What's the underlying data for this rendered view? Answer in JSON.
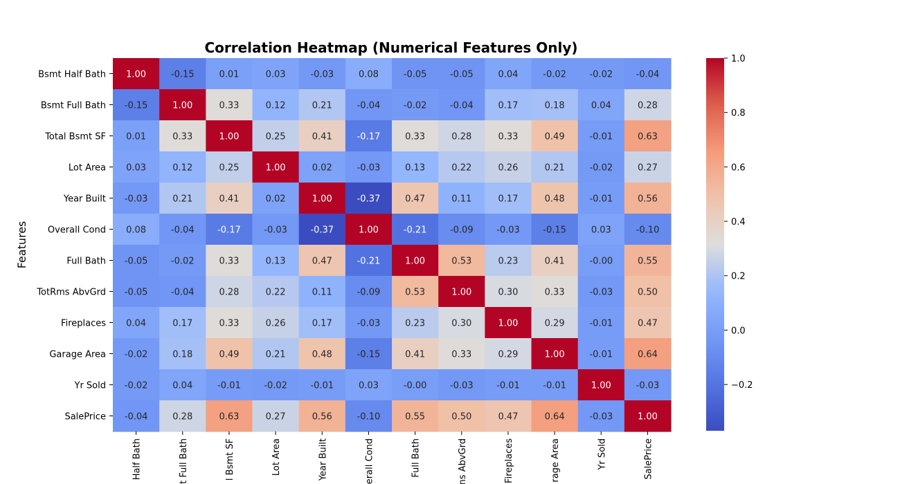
{
  "chart_data": {
    "type": "heatmap",
    "title": "Correlation Heatmap (Numerical Features Only)",
    "ylabel": "Features",
    "xlabel": "",
    "colormap": "coolwarm",
    "value_range": [
      -0.37,
      1.0
    ],
    "colorbar_ticks": [
      "1.0",
      "0.8",
      "0.6",
      "0.4",
      "0.2",
      "0.0",
      "−0.2"
    ],
    "colorbar_tick_values": [
      1.0,
      0.8,
      0.6,
      0.4,
      0.2,
      0.0,
      -0.2
    ],
    "x_tick_labels": [
      "Half Bath",
      "t Full Bath",
      "l Bsmt SF",
      "Lot Area",
      "Year Built",
      "erall Cond",
      "Full Bath",
      "ns AbvGrd",
      "Fireplaces",
      "rage Area",
      "Yr Sold",
      "SalePrice"
    ],
    "rows": [
      "Bsmt Half Bath",
      "Bsmt Full Bath",
      "Total Bsmt SF",
      "Lot Area",
      "Year Built",
      "Overall Cond",
      "Full Bath",
      "TotRms AbvGrd",
      "Fireplaces",
      "Garage Area",
      "Yr Sold",
      "SalePrice"
    ],
    "columns": [
      "Bsmt Half Bath",
      "Bsmt Full Bath",
      "Total Bsmt SF",
      "Lot Area",
      "Year Built",
      "Overall Cond",
      "Full Bath",
      "TotRms AbvGrd",
      "Fireplaces",
      "Garage Area",
      "Yr Sold",
      "SalePrice"
    ],
    "values": [
      [
        1.0,
        -0.15,
        0.01,
        0.03,
        -0.03,
        0.08,
        -0.05,
        -0.05,
        0.04,
        -0.02,
        -0.02,
        -0.04
      ],
      [
        -0.15,
        1.0,
        0.33,
        0.12,
        0.21,
        -0.04,
        -0.02,
        -0.04,
        0.17,
        0.18,
        0.04,
        0.28
      ],
      [
        0.01,
        0.33,
        1.0,
        0.25,
        0.41,
        -0.17,
        0.33,
        0.28,
        0.33,
        0.49,
        -0.01,
        0.63
      ],
      [
        0.03,
        0.12,
        0.25,
        1.0,
        0.02,
        -0.03,
        0.13,
        0.22,
        0.26,
        0.21,
        -0.02,
        0.27
      ],
      [
        -0.03,
        0.21,
        0.41,
        0.02,
        1.0,
        -0.37,
        0.47,
        0.11,
        0.17,
        0.48,
        -0.01,
        0.56
      ],
      [
        0.08,
        -0.04,
        -0.17,
        -0.03,
        -0.37,
        1.0,
        -0.21,
        -0.09,
        -0.03,
        -0.15,
        0.03,
        -0.1
      ],
      [
        -0.05,
        -0.02,
        0.33,
        0.13,
        0.47,
        -0.21,
        1.0,
        0.53,
        0.23,
        0.41,
        -0.0,
        0.55
      ],
      [
        -0.05,
        -0.04,
        0.28,
        0.22,
        0.11,
        -0.09,
        0.53,
        1.0,
        0.3,
        0.33,
        -0.03,
        0.5
      ],
      [
        0.04,
        0.17,
        0.33,
        0.26,
        0.17,
        -0.03,
        0.23,
        0.3,
        1.0,
        0.29,
        -0.01,
        0.47
      ],
      [
        -0.02,
        0.18,
        0.49,
        0.21,
        0.48,
        -0.15,
        0.41,
        0.33,
        0.29,
        1.0,
        -0.01,
        0.64
      ],
      [
        -0.02,
        0.04,
        -0.01,
        -0.02,
        -0.01,
        0.03,
        -0.0,
        -0.03,
        -0.01,
        -0.01,
        1.0,
        -0.03
      ],
      [
        -0.04,
        0.28,
        0.63,
        0.27,
        0.56,
        -0.1,
        0.55,
        0.5,
        0.47,
        0.64,
        -0.03,
        1.0
      ]
    ],
    "value_labels": [
      [
        "1.00",
        "-0.15",
        "0.01",
        "0.03",
        "-0.03",
        "0.08",
        "-0.05",
        "-0.05",
        "0.04",
        "-0.02",
        "-0.02",
        "-0.04"
      ],
      [
        "-0.15",
        "1.00",
        "0.33",
        "0.12",
        "0.21",
        "-0.04",
        "-0.02",
        "-0.04",
        "0.17",
        "0.18",
        "0.04",
        "0.28"
      ],
      [
        "0.01",
        "0.33",
        "1.00",
        "0.25",
        "0.41",
        "-0.17",
        "0.33",
        "0.28",
        "0.33",
        "0.49",
        "-0.01",
        "0.63"
      ],
      [
        "0.03",
        "0.12",
        "0.25",
        "1.00",
        "0.02",
        "-0.03",
        "0.13",
        "0.22",
        "0.26",
        "0.21",
        "-0.02",
        "0.27"
      ],
      [
        "-0.03",
        "0.21",
        "0.41",
        "0.02",
        "1.00",
        "-0.37",
        "0.47",
        "0.11",
        "0.17",
        "0.48",
        "-0.01",
        "0.56"
      ],
      [
        "0.08",
        "-0.04",
        "-0.17",
        "-0.03",
        "-0.37",
        "1.00",
        "-0.21",
        "-0.09",
        "-0.03",
        "-0.15",
        "0.03",
        "-0.10"
      ],
      [
        "-0.05",
        "-0.02",
        "0.33",
        "0.13",
        "0.47",
        "-0.21",
        "1.00",
        "0.53",
        "0.23",
        "0.41",
        "-0.00",
        "0.55"
      ],
      [
        "-0.05",
        "-0.04",
        "0.28",
        "0.22",
        "0.11",
        "-0.09",
        "0.53",
        "1.00",
        "0.30",
        "0.33",
        "-0.03",
        "0.50"
      ],
      [
        "0.04",
        "0.17",
        "0.33",
        "0.26",
        "0.17",
        "-0.03",
        "0.23",
        "0.30",
        "1.00",
        "0.29",
        "-0.01",
        "0.47"
      ],
      [
        "-0.02",
        "0.18",
        "0.49",
        "0.21",
        "0.48",
        "-0.15",
        "0.41",
        "0.33",
        "0.29",
        "1.00",
        "-0.01",
        "0.64"
      ],
      [
        "-0.02",
        "0.04",
        "-0.01",
        "-0.02",
        "-0.01",
        "0.03",
        "-0.00",
        "-0.03",
        "-0.01",
        "-0.01",
        "1.00",
        "-0.03"
      ],
      [
        "-0.04",
        "0.28",
        "0.63",
        "0.27",
        "0.56",
        "-0.10",
        "0.55",
        "0.50",
        "0.47",
        "0.64",
        "-0.03",
        "1.00"
      ]
    ]
  }
}
